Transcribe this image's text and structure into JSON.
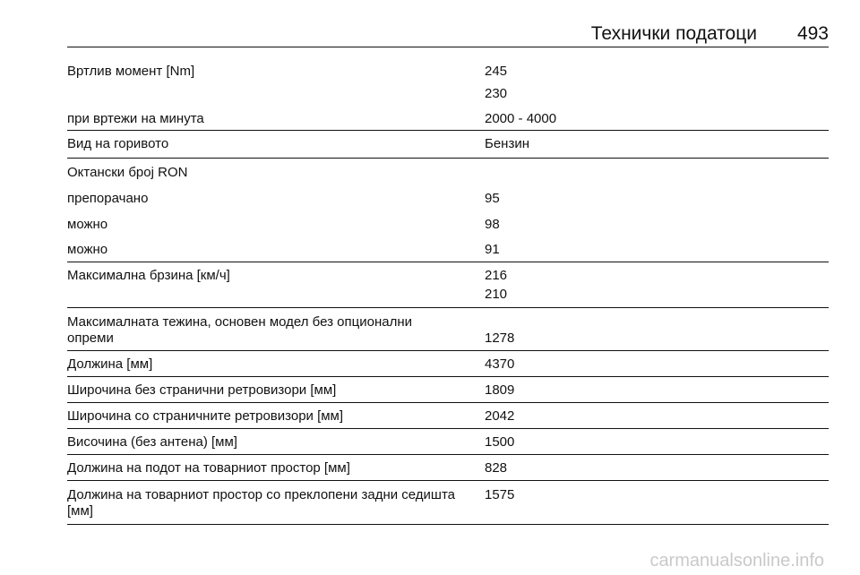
{
  "header": {
    "title": "Технички податоци",
    "page_number": "493"
  },
  "rows": [
    {
      "label": "Вртлив момент [Nm]",
      "value": "245"
    },
    {
      "label": "",
      "value": "230"
    },
    {
      "label": "при вртежи на минута",
      "value": "2000 - 4000"
    },
    {
      "label": "Вид на горивото",
      "value": "Бензин"
    },
    {
      "label": "Октански број RON",
      "value": ""
    },
    {
      "label": "препорачано",
      "value": "95"
    },
    {
      "label": "можно",
      "value": "98"
    },
    {
      "label": "можно",
      "value": "91"
    },
    {
      "label": "Максимална брзина [км/ч]",
      "value": "216"
    },
    {
      "label": "",
      "value": "210"
    },
    {
      "label_line1": "Максималната тежина, основен модел без опционални",
      "label_line2": "опреми",
      "value": "1278"
    },
    {
      "label": "Должина [мм]",
      "value": "4370"
    },
    {
      "label": "Широчина без странични ретровизори [мм]",
      "value": "1809"
    },
    {
      "label": "Широчина со страничните ретровизори [мм]",
      "value": "2042"
    },
    {
      "label": "Височина (без антена) [мм]",
      "value": "1500"
    },
    {
      "label": "Должина на подот на товарниот простор [мм]",
      "value": "828"
    },
    {
      "label_line1": "Должина на товарниот простор со преклопени задни седишта",
      "label_line2": "[мм]",
      "value": "1575"
    }
  ],
  "watermark": "carmanualsonline.info"
}
